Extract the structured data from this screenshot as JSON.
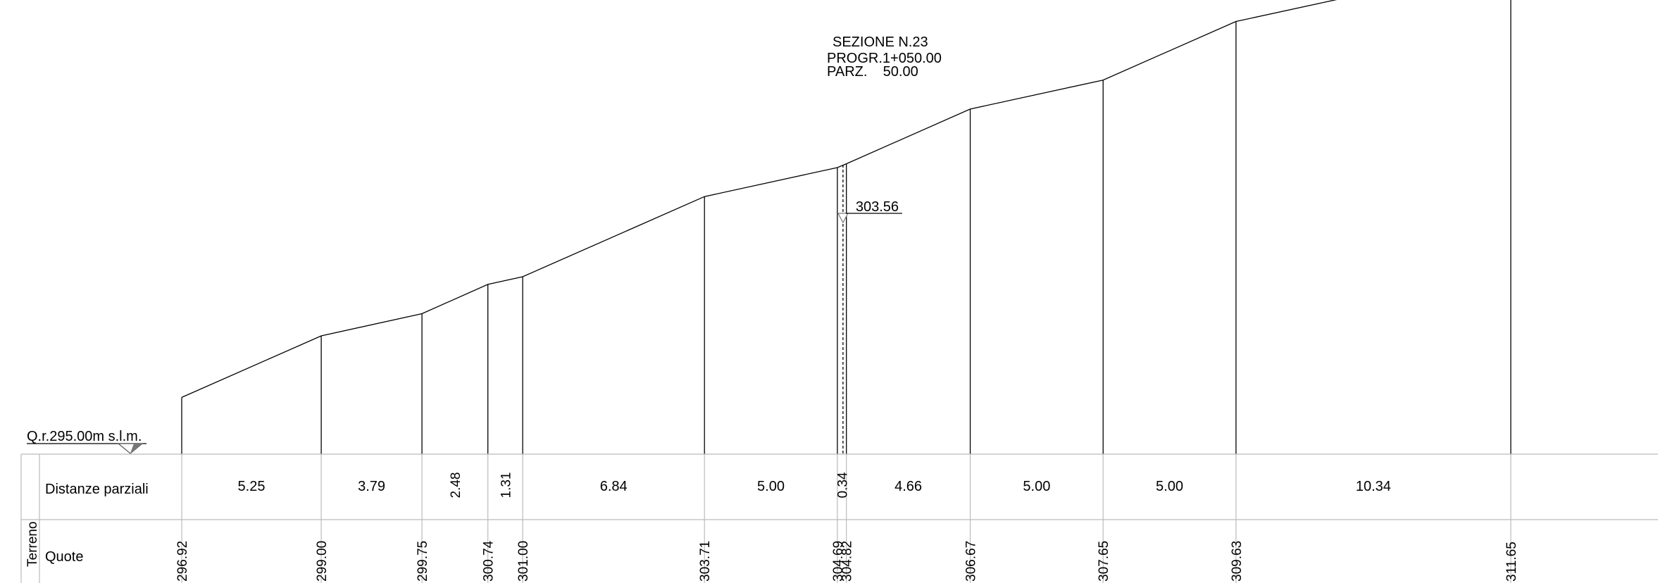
{
  "header": {
    "lines": [
      "SEZIONE N.23",
      "PROGR.1+050.00",
      "PARZ.    50.00"
    ]
  },
  "reference": {
    "label": "Q.r.295.00m s.l.m.",
    "elevation": 295.0
  },
  "marker": {
    "label": "303.56",
    "elevation": 303.56
  },
  "table": {
    "group_label": "Terreno",
    "row_distances_label": "Distanze parziali",
    "row_elevations_label": "Quote"
  },
  "chart_data": {
    "type": "line",
    "title": "",
    "xlabel": "",
    "ylabel": "",
    "distances": [
      "5.25",
      "3.79",
      "2.48",
      "1.31",
      "6.84",
      "5.00",
      "0.34",
      "4.66",
      "5.00",
      "5.00",
      "10.34"
    ],
    "elevations": [
      "296.92",
      "299.00",
      "299.75",
      "300.74",
      "301.00",
      "303.71",
      "304.69",
      "304.82",
      "306.67",
      "307.65",
      "309.63",
      "311.65"
    ],
    "x": [
      0,
      5.25,
      9.04,
      11.52,
      12.83,
      19.67,
      24.67,
      25.01,
      29.67,
      34.67,
      39.67,
      50.01
    ],
    "y": [
      296.92,
      299.0,
      299.75,
      300.74,
      301.0,
      303.71,
      304.69,
      304.82,
      306.67,
      307.65,
      309.63,
      311.65
    ],
    "axis_marker_x": 24.67,
    "vertical_distance_labels": [
      "2.48",
      "1.31",
      "0.34"
    ]
  }
}
